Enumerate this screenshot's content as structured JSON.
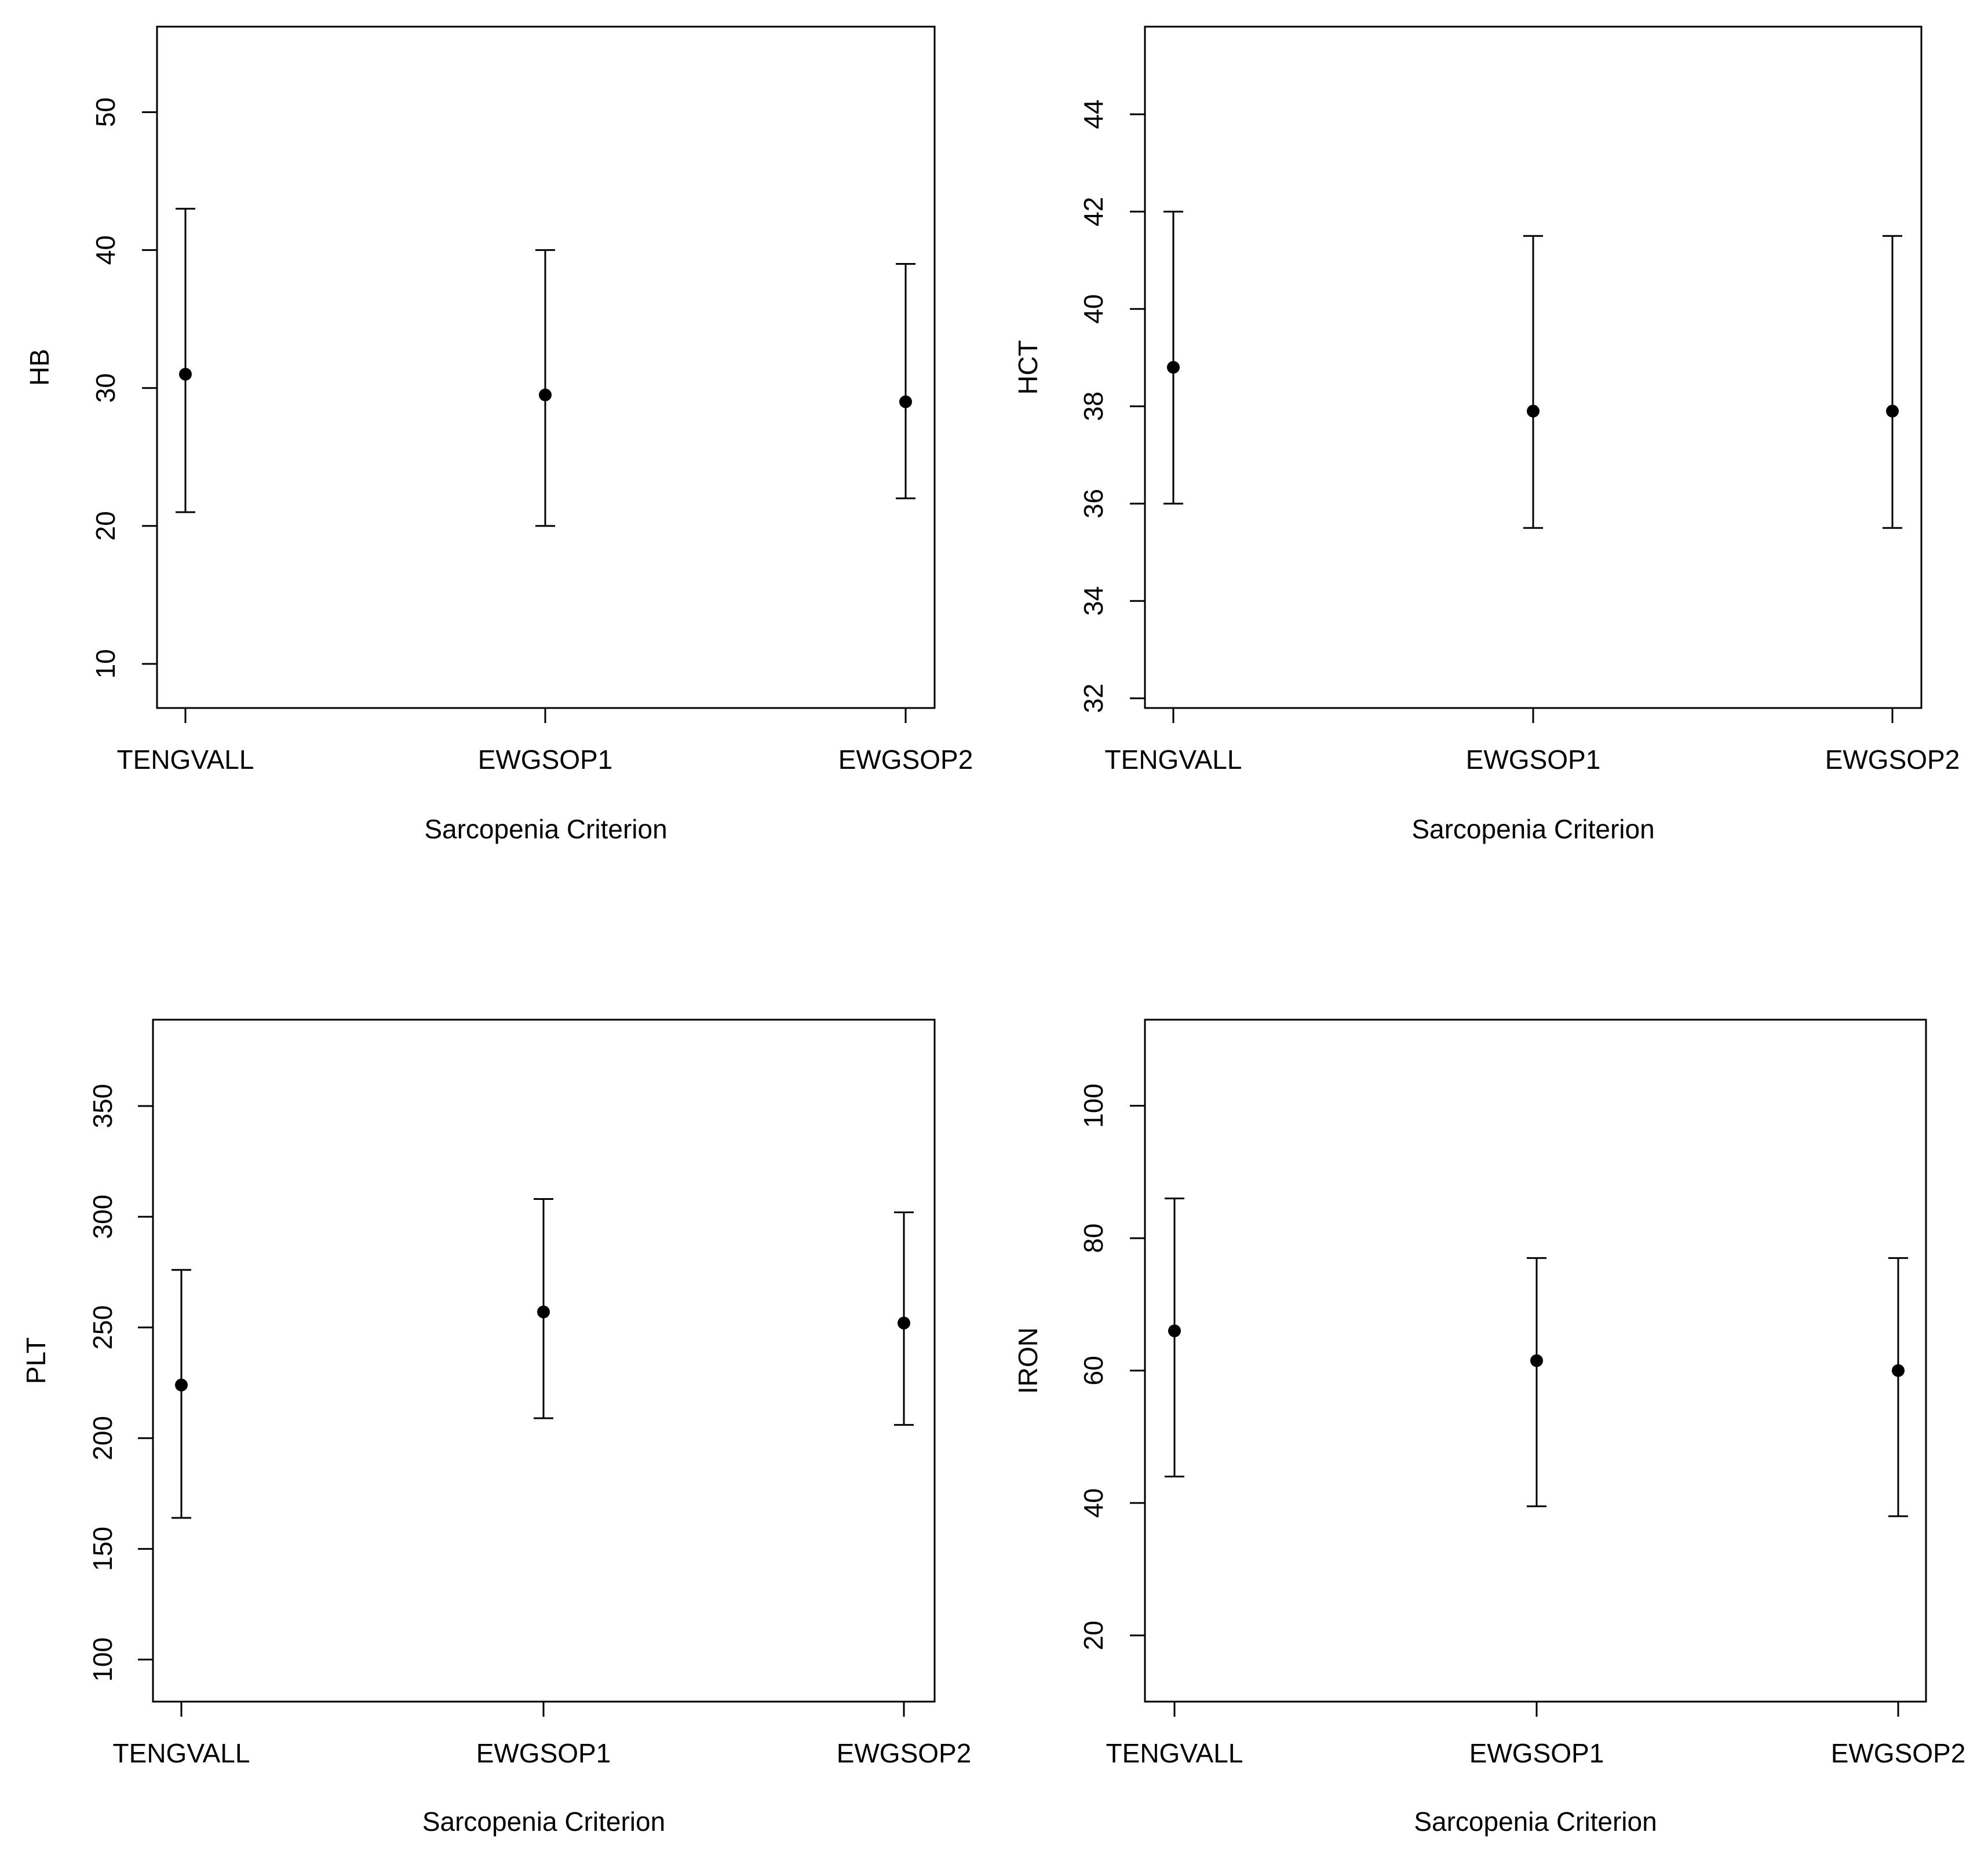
{
  "chart_data": [
    {
      "type": "scatter",
      "subtype": "point-with-error-bars",
      "title": "",
      "xlabel": "Sarcopenia Criterion",
      "ylabel": "HB",
      "categories": [
        "TENGVALL",
        "EWGSOP1",
        "EWGSOP2"
      ],
      "values": [
        31,
        29.5,
        29
      ],
      "lower": [
        21,
        20,
        22
      ],
      "upper": [
        43,
        40,
        39
      ],
      "ylim": [
        6.8,
        56.2
      ],
      "yticks": [
        10,
        20,
        30,
        40,
        50
      ],
      "grid": false
    },
    {
      "type": "scatter",
      "subtype": "point-with-error-bars",
      "title": "",
      "xlabel": "Sarcopenia Criterion",
      "ylabel": "HCT",
      "categories": [
        "TENGVALL",
        "EWGSOP1",
        "EWGSOP2"
      ],
      "values": [
        38.8,
        37.9,
        37.9
      ],
      "lower": [
        36,
        35.5,
        35.5
      ],
      "upper": [
        42,
        41.5,
        41.5
      ],
      "ylim": [
        31.8,
        45.8
      ],
      "yticks": [
        32,
        34,
        36,
        38,
        40,
        42,
        44
      ],
      "grid": false
    },
    {
      "type": "scatter",
      "subtype": "point-with-error-bars",
      "title": "",
      "xlabel": "Sarcopenia Criterion",
      "ylabel": "PLT",
      "categories": [
        "TENGVALL",
        "EWGSOP1",
        "EWGSOP2"
      ],
      "values": [
        224,
        257,
        252
      ],
      "lower": [
        164,
        209,
        206
      ],
      "upper": [
        276,
        308,
        302
      ],
      "ylim": [
        81,
        389
      ],
      "yticks": [
        100,
        150,
        200,
        250,
        300,
        350
      ],
      "grid": false
    },
    {
      "type": "scatter",
      "subtype": "point-with-error-bars",
      "title": "",
      "xlabel": "Sarcopenia Criterion",
      "ylabel": "IRON",
      "categories": [
        "TENGVALL",
        "EWGSOP1",
        "EWGSOP2"
      ],
      "values": [
        66,
        61.5,
        60
      ],
      "lower": [
        44,
        39.5,
        38
      ],
      "upper": [
        86,
        77,
        77
      ],
      "ylim": [
        10,
        113
      ],
      "yticks": [
        20,
        40,
        60,
        80,
        100
      ],
      "grid": false
    }
  ]
}
